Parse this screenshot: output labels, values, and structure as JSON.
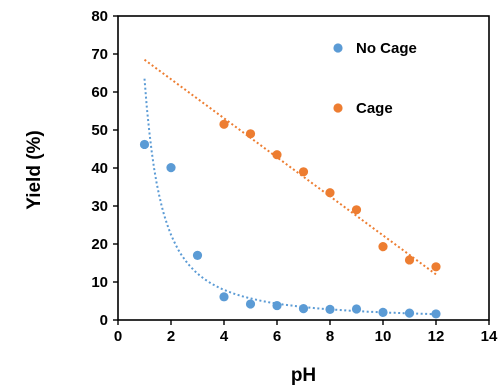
{
  "chart_data": {
    "type": "scatter",
    "xlabel": "pH",
    "ylabel": "Yield (%)",
    "xlim": [
      0,
      14
    ],
    "ylim": [
      0,
      80
    ],
    "xticks": [
      0,
      2,
      4,
      6,
      8,
      10,
      12,
      14
    ],
    "yticks": [
      0,
      10,
      20,
      30,
      40,
      50,
      60,
      70,
      80
    ],
    "grid": false,
    "legend_position": "top-right",
    "series": [
      {
        "name": "No Cage",
        "color": "#5B9BD5",
        "x": [
          1,
          2,
          3,
          4,
          5,
          6,
          7,
          8,
          9,
          10,
          11,
          12
        ],
        "y": [
          46.2,
          40.1,
          17.0,
          6.1,
          4.2,
          3.8,
          3.0,
          2.8,
          2.9,
          2.0,
          1.8,
          1.6
        ],
        "trendline": {
          "style": "dotted",
          "kind": "power",
          "a": 63.5,
          "b": -1.5,
          "x_range": [
            1,
            12
          ]
        }
      },
      {
        "name": "Cage",
        "color": "#ED7D31",
        "x": [
          4,
          5,
          6,
          7,
          8,
          9,
          10,
          11,
          12
        ],
        "y": [
          51.5,
          49.0,
          43.5,
          39.0,
          33.5,
          29.0,
          19.3,
          15.8,
          14.0
        ],
        "trendline": {
          "style": "dotted",
          "kind": "linear",
          "x_range": [
            1,
            12
          ],
          "y_range": [
            68.5,
            12.0
          ]
        }
      }
    ]
  }
}
